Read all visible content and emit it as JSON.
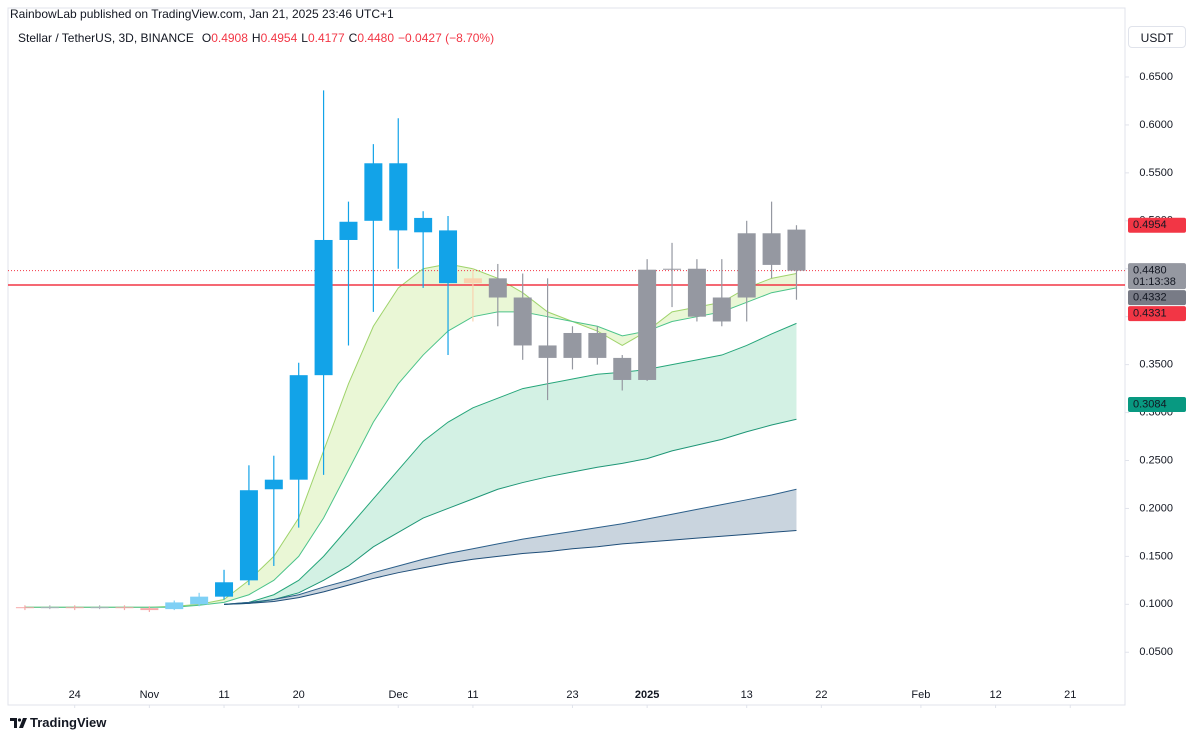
{
  "publisher": "RainbowLab published on TradingView.com, Jan 21, 2025 23:46 UTC+1",
  "symbol": "Stellar / TetherUS, 3D, BINANCE",
  "ohlc": [
    {
      "key": "O",
      "value": "0.4908"
    },
    {
      "key": "H",
      "value": "0.4954"
    },
    {
      "key": "L",
      "value": "0.4177"
    },
    {
      "key": "C",
      "value": "0.4480"
    }
  ],
  "change": "−0.0427 (−8.70%)",
  "currency": "USDT",
  "footer": "TradingView",
  "chart_data": {
    "type": "candlestick",
    "xlim": [
      -0.68,
      44.2
    ],
    "xticks": [
      {
        "value": 2,
        "label": "24"
      },
      {
        "value": 5,
        "label": "Nov"
      },
      {
        "value": 8,
        "label": "11"
      },
      {
        "value": 11,
        "label": "20"
      },
      {
        "value": 15,
        "label": "Dec"
      },
      {
        "value": 18,
        "label": "11"
      },
      {
        "value": 22,
        "label": "23"
      },
      {
        "value": 25,
        "label": "2025"
      },
      {
        "value": 29,
        "label": "13"
      },
      {
        "value": 32,
        "label": "22"
      },
      {
        "value": 36,
        "label": "Feb"
      },
      {
        "value": 39,
        "label": "12"
      },
      {
        "value": 42,
        "label": "21"
      }
    ],
    "ylim": [
      -0.005,
      0.699
    ],
    "yticks": [
      {
        "value": 0.05,
        "label": "0.0500"
      },
      {
        "value": 0.1,
        "label": "0.1000"
      },
      {
        "value": 0.15,
        "label": "0.1500"
      },
      {
        "value": 0.2,
        "label": "0.2000"
      },
      {
        "value": 0.25,
        "label": "0.2500"
      },
      {
        "value": 0.3,
        "label": "0.3000"
      },
      {
        "value": 0.35,
        "label": "0.3500"
      },
      {
        "value": 0.4,
        "label": "0.4000"
      },
      {
        "value": 0.45,
        "label": "0.4500"
      },
      {
        "value": 0.5,
        "label": "0.5000"
      },
      {
        "value": 0.55,
        "label": "0.5500"
      },
      {
        "value": 0.6,
        "label": "0.6000"
      },
      {
        "value": 0.65,
        "label": "0.6500"
      }
    ],
    "open": [
      0.097,
      0.096,
      0.097,
      0.096,
      0.097,
      0.096,
      0.095,
      0.1,
      0.108,
      0.125,
      0.22,
      0.23,
      0.339,
      0.48,
      0.5,
      0.56,
      0.503,
      0.49,
      0.435,
      0.44,
      0.42,
      0.37,
      0.357,
      0.383,
      0.357,
      0.334,
      0.449,
      0.45,
      0.395,
      0.42,
      0.487,
      0.4908
    ],
    "high": [
      0.099,
      0.099,
      0.099,
      0.099,
      0.099,
      0.098,
      0.104,
      0.112,
      0.136,
      0.245,
      0.255,
      0.352,
      0.636,
      0.52,
      0.58,
      0.607,
      0.51,
      0.505,
      0.45,
      0.455,
      0.445,
      0.44,
      0.39,
      0.39,
      0.36,
      0.46,
      0.477,
      0.46,
      0.46,
      0.5,
      0.52,
      0.4954
    ],
    "low": [
      0.094,
      0.095,
      0.094,
      0.095,
      0.094,
      0.092,
      0.094,
      0.098,
      0.105,
      0.12,
      0.14,
      0.18,
      0.235,
      0.37,
      0.405,
      0.45,
      0.43,
      0.36,
      0.395,
      0.39,
      0.355,
      0.313,
      0.345,
      0.35,
      0.323,
      0.333,
      0.41,
      0.395,
      0.39,
      0.395,
      0.44,
      0.4177
    ],
    "close": [
      0.096,
      0.097,
      0.096,
      0.097,
      0.096,
      0.094,
      0.102,
      0.108,
      0.123,
      0.219,
      0.23,
      0.339,
      0.48,
      0.499,
      0.56,
      0.49,
      0.488,
      0.435,
      0.44,
      0.42,
      0.37,
      0.357,
      0.383,
      0.357,
      0.334,
      0.449,
      0.45,
      0.4,
      0.42,
      0.487,
      0.454,
      0.448
    ],
    "colors": [
      "#f7a9a9",
      "#b2b5be",
      "#f7a9a9",
      "#b2b5be",
      "#f7a9a9",
      "#f7a9a9",
      "#7fd0f5",
      "#7fd0f5",
      "#12a3e8",
      "#12a3e8",
      "#12a3e8",
      "#12a3e8",
      "#12a3e8",
      "#12a3e8",
      "#12a3e8",
      "#12a3e8",
      "#12a3e8",
      "#12a3e8",
      "#f9d3b0",
      "#9598a1",
      "#9598a1",
      "#9598a1",
      "#9598a1",
      "#9598a1",
      "#9598a1",
      "#9598a1",
      "#9598a1",
      "#9598a1",
      "#9598a1",
      "#9598a1",
      "#9598a1",
      "#9598a1"
    ],
    "series": [
      {
        "color": "#9fd36b",
        "values": [
          0.097,
          0.097,
          0.097,
          0.097,
          0.097,
          0.097,
          0.098,
          0.1,
          0.105,
          0.125,
          0.15,
          0.19,
          0.26,
          0.33,
          0.39,
          0.43,
          0.45,
          0.455,
          0.45,
          0.44,
          0.425,
          0.405,
          0.395,
          0.385,
          0.37,
          0.385,
          0.405,
          0.41,
          0.415,
          0.43,
          0.44,
          0.445
        ]
      },
      {
        "color": "#4cc38a",
        "values": [
          0.097,
          0.097,
          0.097,
          0.097,
          0.097,
          0.097,
          0.097,
          0.099,
          0.102,
          0.11,
          0.125,
          0.15,
          0.19,
          0.24,
          0.29,
          0.33,
          0.36,
          0.385,
          0.4,
          0.405,
          0.405,
          0.4,
          0.395,
          0.39,
          0.38,
          0.385,
          0.395,
          0.4,
          0.405,
          0.415,
          0.425,
          0.43
        ]
      },
      {
        "color": "#26a67a",
        "values": [
          null,
          null,
          null,
          null,
          null,
          null,
          null,
          null,
          0.1,
          0.102,
          0.11,
          0.125,
          0.15,
          0.18,
          0.21,
          0.24,
          0.27,
          0.29,
          0.305,
          0.315,
          0.325,
          0.33,
          0.335,
          0.34,
          0.342,
          0.345,
          0.35,
          0.355,
          0.36,
          0.37,
          0.382,
          0.393
        ]
      },
      {
        "color": "#1e9676",
        "values": [
          null,
          null,
          null,
          null,
          null,
          null,
          null,
          null,
          0.1,
          0.101,
          0.105,
          0.112,
          0.125,
          0.14,
          0.16,
          0.175,
          0.19,
          0.2,
          0.21,
          0.22,
          0.227,
          0.233,
          0.238,
          0.243,
          0.247,
          0.252,
          0.26,
          0.266,
          0.272,
          0.28,
          0.287,
          0.293
        ]
      },
      {
        "color": "#2c5f8a",
        "values": [
          null,
          null,
          null,
          null,
          null,
          null,
          null,
          null,
          0.1,
          0.102,
          0.105,
          0.11,
          0.118,
          0.125,
          0.133,
          0.14,
          0.147,
          0.153,
          0.158,
          0.163,
          0.168,
          0.172,
          0.176,
          0.18,
          0.184,
          0.189,
          0.194,
          0.199,
          0.204,
          0.209,
          0.214,
          0.22
        ]
      },
      {
        "color": "#1f4e79",
        "values": [
          null,
          null,
          null,
          null,
          null,
          null,
          null,
          null,
          0.1,
          0.101,
          0.103,
          0.107,
          0.113,
          0.12,
          0.127,
          0.133,
          0.138,
          0.143,
          0.147,
          0.15,
          0.153,
          0.155,
          0.158,
          0.16,
          0.163,
          0.165,
          0.167,
          0.169,
          0.171,
          0.173,
          0.175,
          0.177
        ]
      }
    ],
    "fills": [
      {
        "between": [
          0,
          1
        ],
        "color": "#eaf7d6"
      },
      {
        "between": [
          2,
          3
        ],
        "color": "#d3f1e4"
      },
      {
        "between": [
          4,
          5
        ],
        "color": "#c9d4de"
      }
    ],
    "price_labels": [
      {
        "value": 0.4954,
        "label": "0.4954",
        "color": "#f23645"
      },
      {
        "value": 0.448,
        "label": "0.4480",
        "sub": "01:13:38",
        "color": "#9598a1",
        "line": "dotted"
      },
      {
        "value": 0.4332,
        "label": "0.4332",
        "color": "#787b86"
      },
      {
        "value": 0.4331,
        "label": "0.4331",
        "color": "#f23645",
        "line": "solid"
      },
      {
        "value": 0.3084,
        "label": "0.3084",
        "color": "#089981"
      }
    ]
  }
}
